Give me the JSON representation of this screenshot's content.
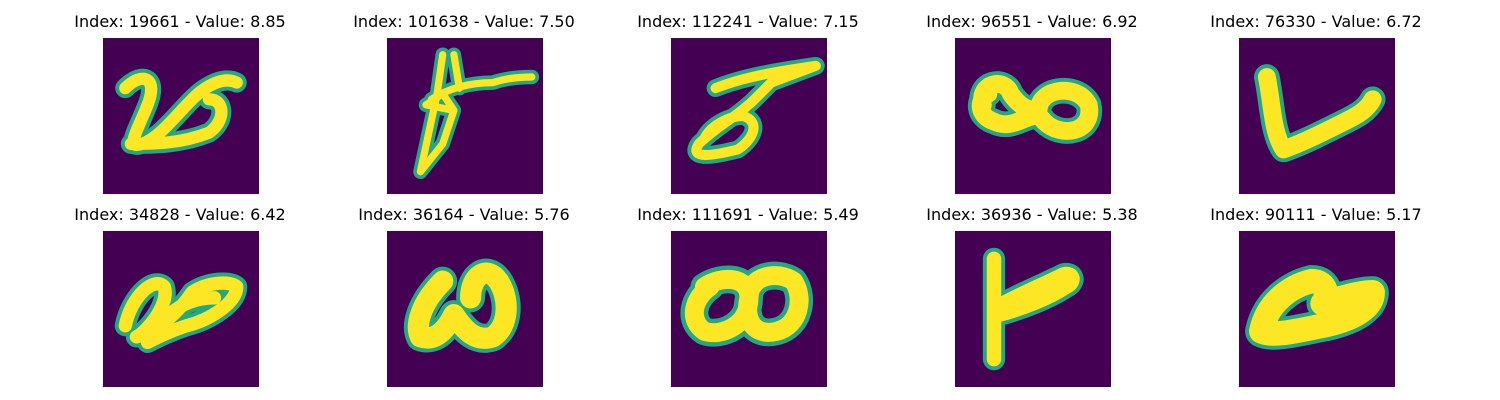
{
  "figure": {
    "background_color": "#440154",
    "foreground_color": "#fde725",
    "edge_color": "#22a884",
    "panels": [
      {
        "title": "Index: 19661 - Value: 8.85",
        "glyph": "stroke-loop-a"
      },
      {
        "title": "Index: 101638 - Value: 7.50",
        "glyph": "stroke-scribble-a"
      },
      {
        "title": "Index: 112241 - Value: 7.15",
        "glyph": "stroke-loop-b"
      },
      {
        "title": "Index: 96551 - Value: 6.92",
        "glyph": "stroke-double-loop-a"
      },
      {
        "title": "Index: 76330 - Value: 6.72",
        "glyph": "stroke-v-shape"
      },
      {
        "title": "Index: 34828 - Value: 6.42",
        "glyph": "stroke-double-loop-b"
      },
      {
        "title": "Index: 36164 - Value: 5.76",
        "glyph": "stroke-loop-c"
      },
      {
        "title": "Index: 111691 - Value: 5.49",
        "glyph": "stroke-double-loop-c"
      },
      {
        "title": "Index: 36936 - Value: 5.38",
        "glyph": "stroke-y-shape"
      },
      {
        "title": "Index: 90111 - Value: 5.17",
        "glyph": "stroke-blob"
      }
    ]
  }
}
